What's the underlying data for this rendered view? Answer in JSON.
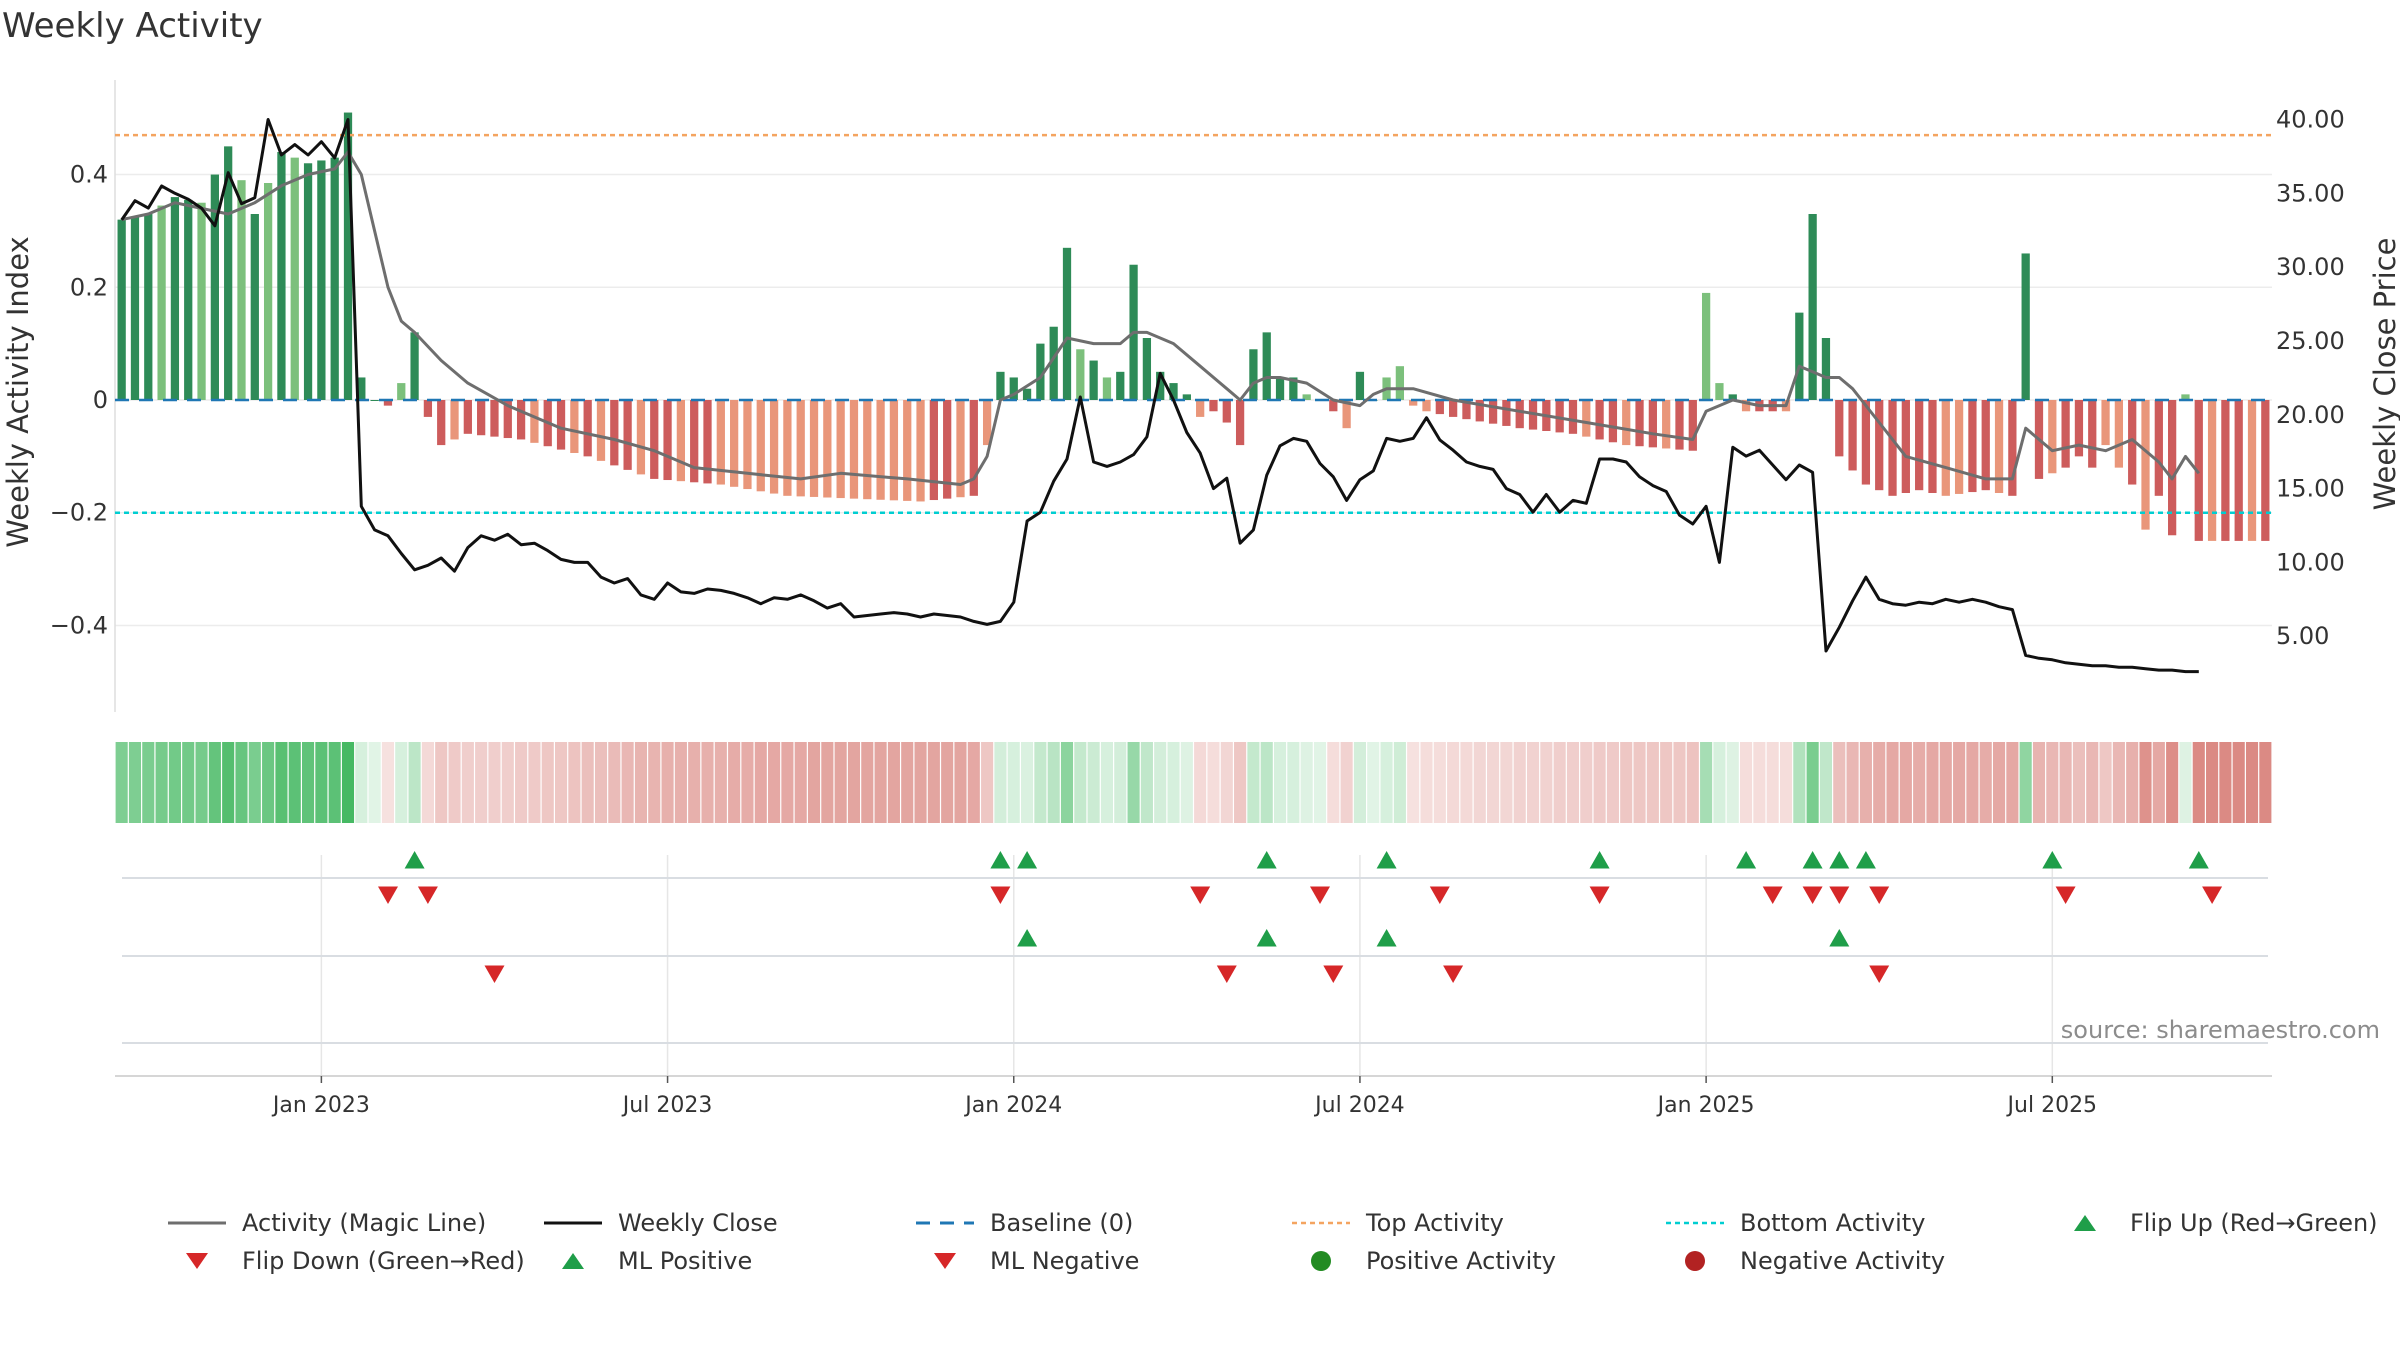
{
  "chart_title": "Weekly Activity",
  "source_note": "source: sharemaestro.com",
  "colors": {
    "pos_strong": "#2e8b57",
    "pos_light": "#7cc07c",
    "neg_strong": "#cd5c5c",
    "neg_light": "#e9967a",
    "magic": "#6e6e6e",
    "close": "#111111",
    "baseline": "#1f77b4",
    "top": "#f4a460",
    "bottom": "#00ced1",
    "up": "#1f9e49",
    "down": "#d62728",
    "pos_dot": "#228b22",
    "neg_dot": "#b22222"
  },
  "chart_data": {
    "type": "bar+line",
    "title": "Weekly Activity",
    "ylabel_left": "Weekly Activity Index",
    "ylabel_right": "Weekly Close Price",
    "ylim_left": [
      -0.55,
      0.55
    ],
    "ylim_right": [
      0,
      42
    ],
    "yticks_left": [
      {
        "v": 0.4,
        "l": "0.4"
      },
      {
        "v": 0.2,
        "l": "0.2"
      },
      {
        "v": 0,
        "l": "0"
      },
      {
        "v": -0.2,
        "l": "−0.2"
      },
      {
        "v": -0.4,
        "l": "−0.4"
      }
    ],
    "yticks_right": [
      {
        "v": 40,
        "l": "40.00"
      },
      {
        "v": 35,
        "l": "35.00"
      },
      {
        "v": 30,
        "l": "30.00"
      },
      {
        "v": 25,
        "l": "25.00"
      },
      {
        "v": 20,
        "l": "20.00"
      },
      {
        "v": 15,
        "l": "15.00"
      },
      {
        "v": 10,
        "l": "10.00"
      },
      {
        "v": 5,
        "l": "5.00"
      }
    ],
    "x_start_week": -15,
    "week_count": 162,
    "xticks": [
      {
        "w": 0,
        "l": "Jan 2023"
      },
      {
        "w": 26,
        "l": "Jul 2023"
      },
      {
        "w": 52,
        "l": "Jan 2024"
      },
      {
        "w": 78,
        "l": "Jul 2024"
      },
      {
        "w": 104,
        "l": "Jan 2025"
      },
      {
        "w": 130,
        "l": "Jul 2025"
      }
    ],
    "top_activity": 0.47,
    "bottom_activity": -0.2,
    "baseline": 0,
    "activity_keys": [
      [
        -15,
        0.32
      ],
      [
        -13,
        0.33
      ],
      [
        -11,
        0.36
      ],
      [
        -9,
        0.35
      ],
      [
        -7,
        0.45
      ],
      [
        -5,
        0.33
      ],
      [
        -3,
        0.44
      ],
      [
        -1,
        0.42
      ],
      [
        1,
        0.43
      ],
      [
        2,
        0.51
      ],
      [
        3,
        0.04
      ],
      [
        4,
        0.0
      ],
      [
        5,
        -0.01
      ],
      [
        6,
        0.03
      ],
      [
        7,
        0.12
      ],
      [
        8,
        -0.03
      ],
      [
        9,
        -0.08
      ],
      [
        11,
        -0.06
      ],
      [
        15,
        -0.07
      ],
      [
        20,
        -0.1
      ],
      [
        25,
        -0.14
      ],
      [
        30,
        -0.15
      ],
      [
        35,
        -0.17
      ],
      [
        45,
        -0.18
      ],
      [
        49,
        -0.17
      ],
      [
        50,
        -0.08
      ],
      [
        51,
        0.05
      ],
      [
        52,
        0.04
      ],
      [
        53,
        0.02
      ],
      [
        54,
        0.1
      ],
      [
        55,
        0.13
      ],
      [
        56,
        0.27
      ],
      [
        57,
        0.09
      ],
      [
        58,
        0.07
      ],
      [
        59,
        0.04
      ],
      [
        60,
        0.05
      ],
      [
        61,
        0.24
      ],
      [
        62,
        0.11
      ],
      [
        63,
        0.05
      ],
      [
        64,
        0.03
      ],
      [
        65,
        0.01
      ],
      [
        66,
        -0.03
      ],
      [
        67,
        -0.02
      ],
      [
        68,
        -0.04
      ],
      [
        69,
        -0.08
      ],
      [
        70,
        0.09
      ],
      [
        71,
        0.12
      ],
      [
        72,
        0.04
      ],
      [
        73,
        0.04
      ],
      [
        74,
        0.01
      ],
      [
        75,
        0.0
      ],
      [
        76,
        -0.02
      ],
      [
        77,
        -0.05
      ],
      [
        78,
        0.05
      ],
      [
        79,
        0.0
      ],
      [
        80,
        0.04
      ],
      [
        81,
        0.06
      ],
      [
        82,
        -0.01
      ],
      [
        83,
        -0.02
      ],
      [
        85,
        -0.03
      ],
      [
        90,
        -0.05
      ],
      [
        94,
        -0.06
      ],
      [
        98,
        -0.08
      ],
      [
        103,
        -0.09
      ],
      [
        104,
        0.19
      ],
      [
        105,
        0.03
      ],
      [
        106,
        0.01
      ],
      [
        107,
        -0.02
      ],
      [
        110,
        -0.02
      ],
      [
        112,
        0.33
      ],
      [
        113,
        0.11
      ],
      [
        114,
        -0.1
      ],
      [
        116,
        -0.15
      ],
      [
        118,
        -0.17
      ],
      [
        120,
        -0.16
      ],
      [
        122,
        -0.17
      ],
      [
        125,
        -0.16
      ],
      [
        127,
        -0.17
      ],
      [
        128,
        0.26
      ],
      [
        129,
        -0.14
      ],
      [
        130,
        -0.13
      ],
      [
        131,
        -0.12
      ],
      [
        132,
        -0.1
      ],
      [
        133,
        -0.12
      ],
      [
        134,
        -0.08
      ],
      [
        135,
        -0.12
      ],
      [
        136,
        -0.15
      ],
      [
        137,
        -0.23
      ],
      [
        138,
        -0.17
      ],
      [
        139,
        -0.24
      ],
      [
        140,
        0.01
      ],
      [
        141,
        -0.25
      ]
    ],
    "magic_line_keys": [
      [
        -15,
        0.32
      ],
      [
        -13,
        0.33
      ],
      [
        -11,
        0.35
      ],
      [
        -9,
        0.34
      ],
      [
        -7,
        0.33
      ],
      [
        -5,
        0.35
      ],
      [
        -3,
        0.38
      ],
      [
        -1,
        0.4
      ],
      [
        1,
        0.41
      ],
      [
        2,
        0.44
      ],
      [
        3,
        0.4
      ],
      [
        4,
        0.3
      ],
      [
        5,
        0.2
      ],
      [
        6,
        0.14
      ],
      [
        7,
        0.12
      ],
      [
        9,
        0.07
      ],
      [
        11,
        0.03
      ],
      [
        14,
        -0.01
      ],
      [
        18,
        -0.05
      ],
      [
        22,
        -0.07
      ],
      [
        25,
        -0.09
      ],
      [
        28,
        -0.12
      ],
      [
        32,
        -0.13
      ],
      [
        36,
        -0.14
      ],
      [
        39,
        -0.13
      ],
      [
        44,
        -0.14
      ],
      [
        48,
        -0.15
      ],
      [
        49,
        -0.14
      ],
      [
        50,
        -0.1
      ],
      [
        51,
        0.0
      ],
      [
        52,
        0.01
      ],
      [
        54,
        0.04
      ],
      [
        56,
        0.11
      ],
      [
        58,
        0.1
      ],
      [
        60,
        0.1
      ],
      [
        61,
        0.12
      ],
      [
        62,
        0.12
      ],
      [
        64,
        0.1
      ],
      [
        66,
        0.06
      ],
      [
        68,
        0.02
      ],
      [
        69,
        0.0
      ],
      [
        70,
        0.03
      ],
      [
        71,
        0.04
      ],
      [
        72,
        0.04
      ],
      [
        74,
        0.03
      ],
      [
        76,
        0.0
      ],
      [
        78,
        -0.01
      ],
      [
        79,
        0.01
      ],
      [
        80,
        0.02
      ],
      [
        82,
        0.02
      ],
      [
        85,
        0.0
      ],
      [
        90,
        -0.02
      ],
      [
        95,
        -0.04
      ],
      [
        100,
        -0.06
      ],
      [
        103,
        -0.07
      ],
      [
        104,
        -0.02
      ],
      [
        106,
        0.0
      ],
      [
        108,
        -0.01
      ],
      [
        110,
        -0.01
      ],
      [
        111,
        0.06
      ],
      [
        112,
        0.05
      ],
      [
        113,
        0.04
      ],
      [
        114,
        0.04
      ],
      [
        115,
        0.02
      ],
      [
        117,
        -0.04
      ],
      [
        119,
        -0.1
      ],
      [
        122,
        -0.12
      ],
      [
        125,
        -0.14
      ],
      [
        127,
        -0.14
      ],
      [
        128,
        -0.05
      ],
      [
        130,
        -0.09
      ],
      [
        132,
        -0.08
      ],
      [
        134,
        -0.09
      ],
      [
        136,
        -0.07
      ],
      [
        138,
        -0.11
      ],
      [
        139,
        -0.14
      ],
      [
        140,
        -0.1
      ],
      [
        141,
        -0.13
      ]
    ],
    "close_keys": [
      [
        -15,
        33.2
      ],
      [
        -14,
        34.5
      ],
      [
        -13,
        34.0
      ],
      [
        -12,
        35.5
      ],
      [
        -11,
        35.0
      ],
      [
        -10,
        34.6
      ],
      [
        -9,
        34.0
      ],
      [
        -8,
        32.8
      ],
      [
        -7,
        36.4
      ],
      [
        -6,
        34.3
      ],
      [
        -5,
        34.7
      ],
      [
        -4,
        40.0
      ],
      [
        -3,
        37.6
      ],
      [
        -2,
        38.3
      ],
      [
        -1,
        37.6
      ],
      [
        0,
        38.5
      ],
      [
        1,
        37.4
      ],
      [
        2,
        40.0
      ],
      [
        3,
        13.8
      ],
      [
        4,
        12.2
      ],
      [
        5,
        11.8
      ],
      [
        6,
        10.6
      ],
      [
        7,
        9.5
      ],
      [
        8,
        9.8
      ],
      [
        9,
        10.3
      ],
      [
        10,
        9.4
      ],
      [
        11,
        11.0
      ],
      [
        12,
        11.8
      ],
      [
        13,
        11.5
      ],
      [
        14,
        11.9
      ],
      [
        15,
        11.2
      ],
      [
        16,
        11.3
      ],
      [
        17,
        10.8
      ],
      [
        18,
        10.2
      ],
      [
        19,
        10.0
      ],
      [
        20,
        10.0
      ],
      [
        21,
        9.0
      ],
      [
        22,
        8.6
      ],
      [
        23,
        8.9
      ],
      [
        24,
        7.8
      ],
      [
        25,
        7.5
      ],
      [
        26,
        8.6
      ],
      [
        27,
        8.0
      ],
      [
        28,
        7.9
      ],
      [
        29,
        8.2
      ],
      [
        30,
        8.1
      ],
      [
        31,
        7.9
      ],
      [
        32,
        7.6
      ],
      [
        33,
        7.2
      ],
      [
        34,
        7.6
      ],
      [
        35,
        7.5
      ],
      [
        36,
        7.8
      ],
      [
        37,
        7.4
      ],
      [
        38,
        6.9
      ],
      [
        39,
        7.2
      ],
      [
        40,
        6.3
      ],
      [
        41,
        6.4
      ],
      [
        42,
        6.5
      ],
      [
        43,
        6.6
      ],
      [
        44,
        6.5
      ],
      [
        45,
        6.3
      ],
      [
        46,
        6.5
      ],
      [
        47,
        6.4
      ],
      [
        48,
        6.3
      ],
      [
        49,
        6.0
      ],
      [
        50,
        5.8
      ],
      [
        51,
        6.0
      ],
      [
        52,
        7.3
      ],
      [
        53,
        12.8
      ],
      [
        54,
        13.4
      ],
      [
        55,
        15.5
      ],
      [
        56,
        17.0
      ],
      [
        57,
        21.2
      ],
      [
        58,
        16.8
      ],
      [
        59,
        16.5
      ],
      [
        60,
        16.8
      ],
      [
        61,
        17.3
      ],
      [
        62,
        18.5
      ],
      [
        63,
        22.8
      ],
      [
        64,
        21.0
      ],
      [
        65,
        18.8
      ],
      [
        66,
        17.4
      ],
      [
        67,
        15.0
      ],
      [
        68,
        15.7
      ],
      [
        69,
        11.3
      ],
      [
        70,
        12.2
      ],
      [
        71,
        15.9
      ],
      [
        72,
        17.9
      ],
      [
        73,
        18.4
      ],
      [
        74,
        18.2
      ],
      [
        75,
        16.7
      ],
      [
        76,
        15.8
      ],
      [
        77,
        14.2
      ],
      [
        78,
        15.6
      ],
      [
        79,
        16.2
      ],
      [
        80,
        18.4
      ],
      [
        81,
        18.2
      ],
      [
        82,
        18.4
      ],
      [
        83,
        19.8
      ],
      [
        84,
        18.3
      ],
      [
        85,
        17.6
      ],
      [
        86,
        16.8
      ],
      [
        87,
        16.5
      ],
      [
        88,
        16.3
      ],
      [
        89,
        15.0
      ],
      [
        90,
        14.6
      ],
      [
        91,
        13.4
      ],
      [
        92,
        14.6
      ],
      [
        93,
        13.4
      ],
      [
        94,
        14.2
      ],
      [
        95,
        14.0
      ],
      [
        96,
        17.0
      ],
      [
        97,
        17.0
      ],
      [
        98,
        16.8
      ],
      [
        99,
        15.8
      ],
      [
        100,
        15.2
      ],
      [
        101,
        14.8
      ],
      [
        102,
        13.2
      ],
      [
        103,
        12.6
      ],
      [
        104,
        13.8
      ],
      [
        105,
        10.0
      ],
      [
        106,
        17.8
      ],
      [
        107,
        17.2
      ],
      [
        108,
        17.6
      ],
      [
        109,
        16.6
      ],
      [
        110,
        15.6
      ],
      [
        111,
        16.6
      ],
      [
        112,
        16.1
      ],
      [
        113,
        4.0
      ],
      [
        114,
        5.6
      ],
      [
        115,
        7.4
      ],
      [
        116,
        9.0
      ],
      [
        117,
        7.5
      ],
      [
        118,
        7.2
      ],
      [
        119,
        7.1
      ],
      [
        120,
        7.3
      ],
      [
        121,
        7.2
      ],
      [
        122,
        7.5
      ],
      [
        123,
        7.3
      ],
      [
        124,
        7.5
      ],
      [
        125,
        7.3
      ],
      [
        126,
        7.0
      ],
      [
        127,
        6.8
      ],
      [
        128,
        3.7
      ],
      [
        129,
        3.5
      ],
      [
        130,
        3.4
      ],
      [
        131,
        3.2
      ],
      [
        132,
        3.1
      ],
      [
        133,
        3.0
      ],
      [
        134,
        3.0
      ],
      [
        135,
        2.9
      ],
      [
        136,
        2.9
      ],
      [
        137,
        2.8
      ],
      [
        138,
        2.7
      ],
      [
        139,
        2.7
      ],
      [
        140,
        2.6
      ],
      [
        141,
        2.6
      ]
    ],
    "flip_up_weeks": [
      7,
      51,
      53,
      71,
      80,
      96,
      107,
      112,
      114,
      116,
      130,
      141
    ],
    "flip_down_weeks": [
      5,
      8,
      51,
      66,
      75,
      84,
      96,
      109,
      112,
      114,
      117,
      131,
      142
    ],
    "ml_positive_weeks": [
      53,
      71,
      80,
      114
    ],
    "ml_negative_weeks": [
      13,
      68,
      76,
      85,
      117
    ]
  },
  "legend": [
    {
      "id": "magic",
      "label": "Activity (Magic Line)"
    },
    {
      "id": "close",
      "label": "Weekly Close"
    },
    {
      "id": "baseline",
      "label": "Baseline (0)"
    },
    {
      "id": "top",
      "label": "Top Activity"
    },
    {
      "id": "bottom",
      "label": "Bottom Activity"
    },
    {
      "id": "flipup",
      "label": "Flip Up (Red→Green)"
    },
    {
      "id": "flipdown",
      "label": "Flip Down (Green→Red)"
    },
    {
      "id": "mlpos",
      "label": "ML Positive"
    },
    {
      "id": "mlneg",
      "label": "ML Negative"
    },
    {
      "id": "posdot",
      "label": "Positive Activity"
    },
    {
      "id": "negdot",
      "label": "Negative Activity"
    }
  ]
}
